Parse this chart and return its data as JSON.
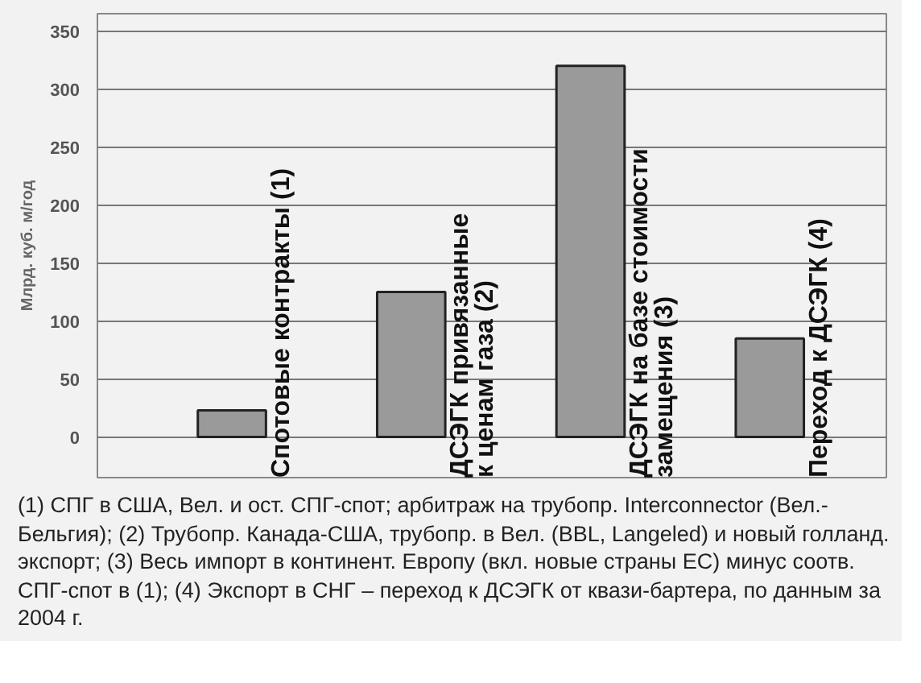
{
  "chart_data": {
    "type": "bar",
    "ylabel": "Млрд. куб. м/год",
    "categories": [
      "Спотовые контракты (1)",
      "ДСЭГК привязанные\nк ценам газа (2)",
      "ДСЭГК на базе стоимости\nзамещения (3)",
      "Переход к ДСЭГК (4)"
    ],
    "values": [
      23,
      125,
      320,
      85
    ],
    "color": "#9a9a9a",
    "ylim": [
      -35,
      365
    ],
    "yticks": [
      0,
      50,
      100,
      150,
      200,
      250,
      300,
      350
    ],
    "grid": "y",
    "annotations": [
      "(1) СПГ в США, Вел. и ост. СПГ-спот; арбитраж на трубопр. Interconnector (Вел.-Бельгия); (2) Трубопр. Канада-США, трубопр. в Вел. (BBL, Langeled) и новый голланд. экспорт; (3) Весь импорт в континент. Европу (вкл. новые страны ЕС) минус соотв. СПГ-спот в (1); (4) Экспорт в СНГ – переход к ДСЭГК от квази-бартера, по данным за 2004 г."
    ]
  }
}
